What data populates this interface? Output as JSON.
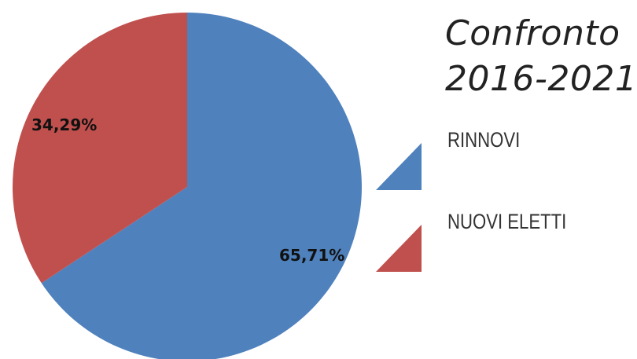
{
  "chart_data": {
    "type": "pie",
    "title_lines": [
      "Confronto",
      "2016-2021"
    ],
    "slices": [
      {
        "name": "RINNOVI",
        "value": 65.71,
        "label": "65,71%",
        "color": "#4f81bd"
      },
      {
        "name": "NUOVI ELETTI",
        "value": 34.29,
        "label": "34,29%",
        "color": "#c0504d"
      }
    ],
    "legend": {
      "placement": "right",
      "items": [
        {
          "label": "RINNOVI",
          "color": "#4f81bd"
        },
        {
          "label": "NUOVI ELETTI",
          "color": "#c0504d"
        }
      ]
    }
  }
}
